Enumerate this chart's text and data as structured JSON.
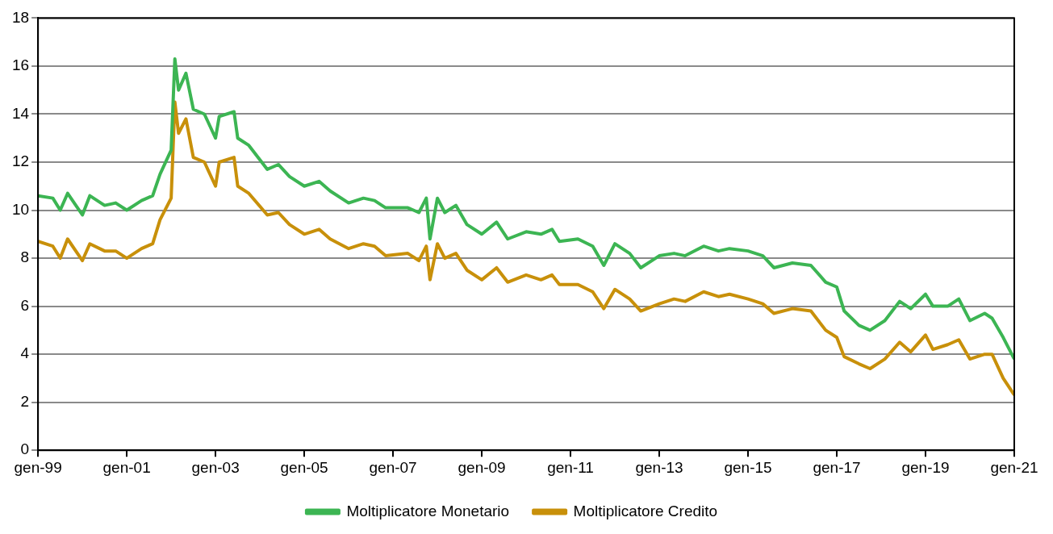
{
  "chart_data": {
    "type": "line",
    "x": [
      "1999-01",
      "1999-05",
      "1999-07",
      "1999-09",
      "2000-01",
      "2000-03",
      "2000-07",
      "2000-10",
      "2001-01",
      "2001-05",
      "2001-08",
      "2001-10",
      "2002-01",
      "2002-02",
      "2002-03",
      "2002-05",
      "2002-07",
      "2002-10",
      "2003-01",
      "2003-02",
      "2003-06",
      "2003-07",
      "2003-10",
      "2004-03",
      "2004-06",
      "2004-09",
      "2005-01",
      "2005-05",
      "2005-08",
      "2006-01",
      "2006-05",
      "2006-08",
      "2006-11",
      "2007-05",
      "2007-08",
      "2007-10",
      "2007-11",
      "2008-01",
      "2008-03",
      "2008-06",
      "2008-09",
      "2009-01",
      "2009-05",
      "2009-08",
      "2010-01",
      "2010-05",
      "2010-08",
      "2010-10",
      "2011-03",
      "2011-07",
      "2011-10",
      "2012-01",
      "2012-05",
      "2012-08",
      "2013-01",
      "2013-05",
      "2013-08",
      "2014-01",
      "2014-05",
      "2014-08",
      "2015-01",
      "2015-05",
      "2015-08",
      "2016-01",
      "2016-06",
      "2016-10",
      "2017-01",
      "2017-03",
      "2017-07",
      "2017-10",
      "2018-02",
      "2018-06",
      "2018-09",
      "2019-01",
      "2019-03",
      "2019-07",
      "2019-10",
      "2020-01",
      "2020-05",
      "2020-07",
      "2020-10",
      "2021-01"
    ],
    "series": [
      {
        "name": "Moltiplicatore Monetario",
        "color": "#3cb553",
        "values": [
          10.6,
          10.5,
          10.0,
          10.7,
          9.8,
          10.6,
          10.2,
          10.3,
          10.0,
          10.4,
          10.6,
          11.5,
          12.5,
          16.3,
          15.0,
          15.7,
          14.2,
          14.0,
          13.0,
          13.9,
          14.1,
          13.0,
          12.7,
          11.7,
          11.9,
          11.4,
          11.0,
          11.2,
          10.8,
          10.3,
          10.5,
          10.4,
          10.1,
          10.1,
          9.9,
          10.5,
          8.8,
          10.5,
          9.9,
          10.2,
          9.4,
          9.0,
          9.5,
          8.8,
          9.1,
          9.0,
          9.2,
          8.7,
          8.8,
          8.5,
          7.7,
          8.6,
          8.2,
          7.6,
          8.1,
          8.2,
          8.1,
          8.5,
          8.3,
          8.4,
          8.3,
          8.1,
          7.6,
          7.8,
          7.7,
          7.0,
          6.8,
          5.8,
          5.2,
          5.0,
          5.4,
          6.2,
          5.9,
          6.5,
          6.0,
          6.0,
          6.3,
          5.4,
          5.7,
          5.5,
          4.7,
          3.8
        ]
      },
      {
        "name": "Moltiplicatore Credito",
        "color": "#c8900a",
        "values": [
          8.7,
          8.5,
          8.0,
          8.8,
          7.9,
          8.6,
          8.3,
          8.3,
          8.0,
          8.4,
          8.6,
          9.6,
          10.5,
          14.5,
          13.2,
          13.8,
          12.2,
          12.0,
          11.0,
          12.0,
          12.2,
          11.0,
          10.7,
          9.8,
          9.9,
          9.4,
          9.0,
          9.2,
          8.8,
          8.4,
          8.6,
          8.5,
          8.1,
          8.2,
          7.9,
          8.5,
          7.1,
          8.6,
          8.0,
          8.2,
          7.5,
          7.1,
          7.6,
          7.0,
          7.3,
          7.1,
          7.3,
          6.9,
          6.9,
          6.6,
          5.9,
          6.7,
          6.3,
          5.8,
          6.1,
          6.3,
          6.2,
          6.6,
          6.4,
          6.5,
          6.3,
          6.1,
          5.7,
          5.9,
          5.8,
          5.0,
          4.7,
          3.9,
          3.6,
          3.4,
          3.8,
          4.5,
          4.1,
          4.8,
          4.2,
          4.4,
          4.6,
          3.8,
          4.0,
          4.0,
          3.0,
          2.3
        ]
      }
    ],
    "xlim": [
      "1999-01",
      "2021-01"
    ],
    "xticks": [
      {
        "value": "1999-01",
        "label": "gen-99"
      },
      {
        "value": "2001-01",
        "label": "gen-01"
      },
      {
        "value": "2003-01",
        "label": "gen-03"
      },
      {
        "value": "2005-01",
        "label": "gen-05"
      },
      {
        "value": "2007-01",
        "label": "gen-07"
      },
      {
        "value": "2009-01",
        "label": "gen-09"
      },
      {
        "value": "2011-01",
        "label": "gen-11"
      },
      {
        "value": "2013-01",
        "label": "gen-13"
      },
      {
        "value": "2015-01",
        "label": "gen-15"
      },
      {
        "value": "2017-01",
        "label": "gen-17"
      },
      {
        "value": "2019-01",
        "label": "gen-19"
      },
      {
        "value": "2021-01",
        "label": "gen-21"
      }
    ],
    "ylim": [
      0,
      18
    ],
    "yticks": [
      0,
      2,
      4,
      6,
      8,
      10,
      12,
      14,
      16,
      18
    ],
    "grid": "y",
    "legend": "bottom",
    "marker": "none",
    "line_style": "solid"
  }
}
